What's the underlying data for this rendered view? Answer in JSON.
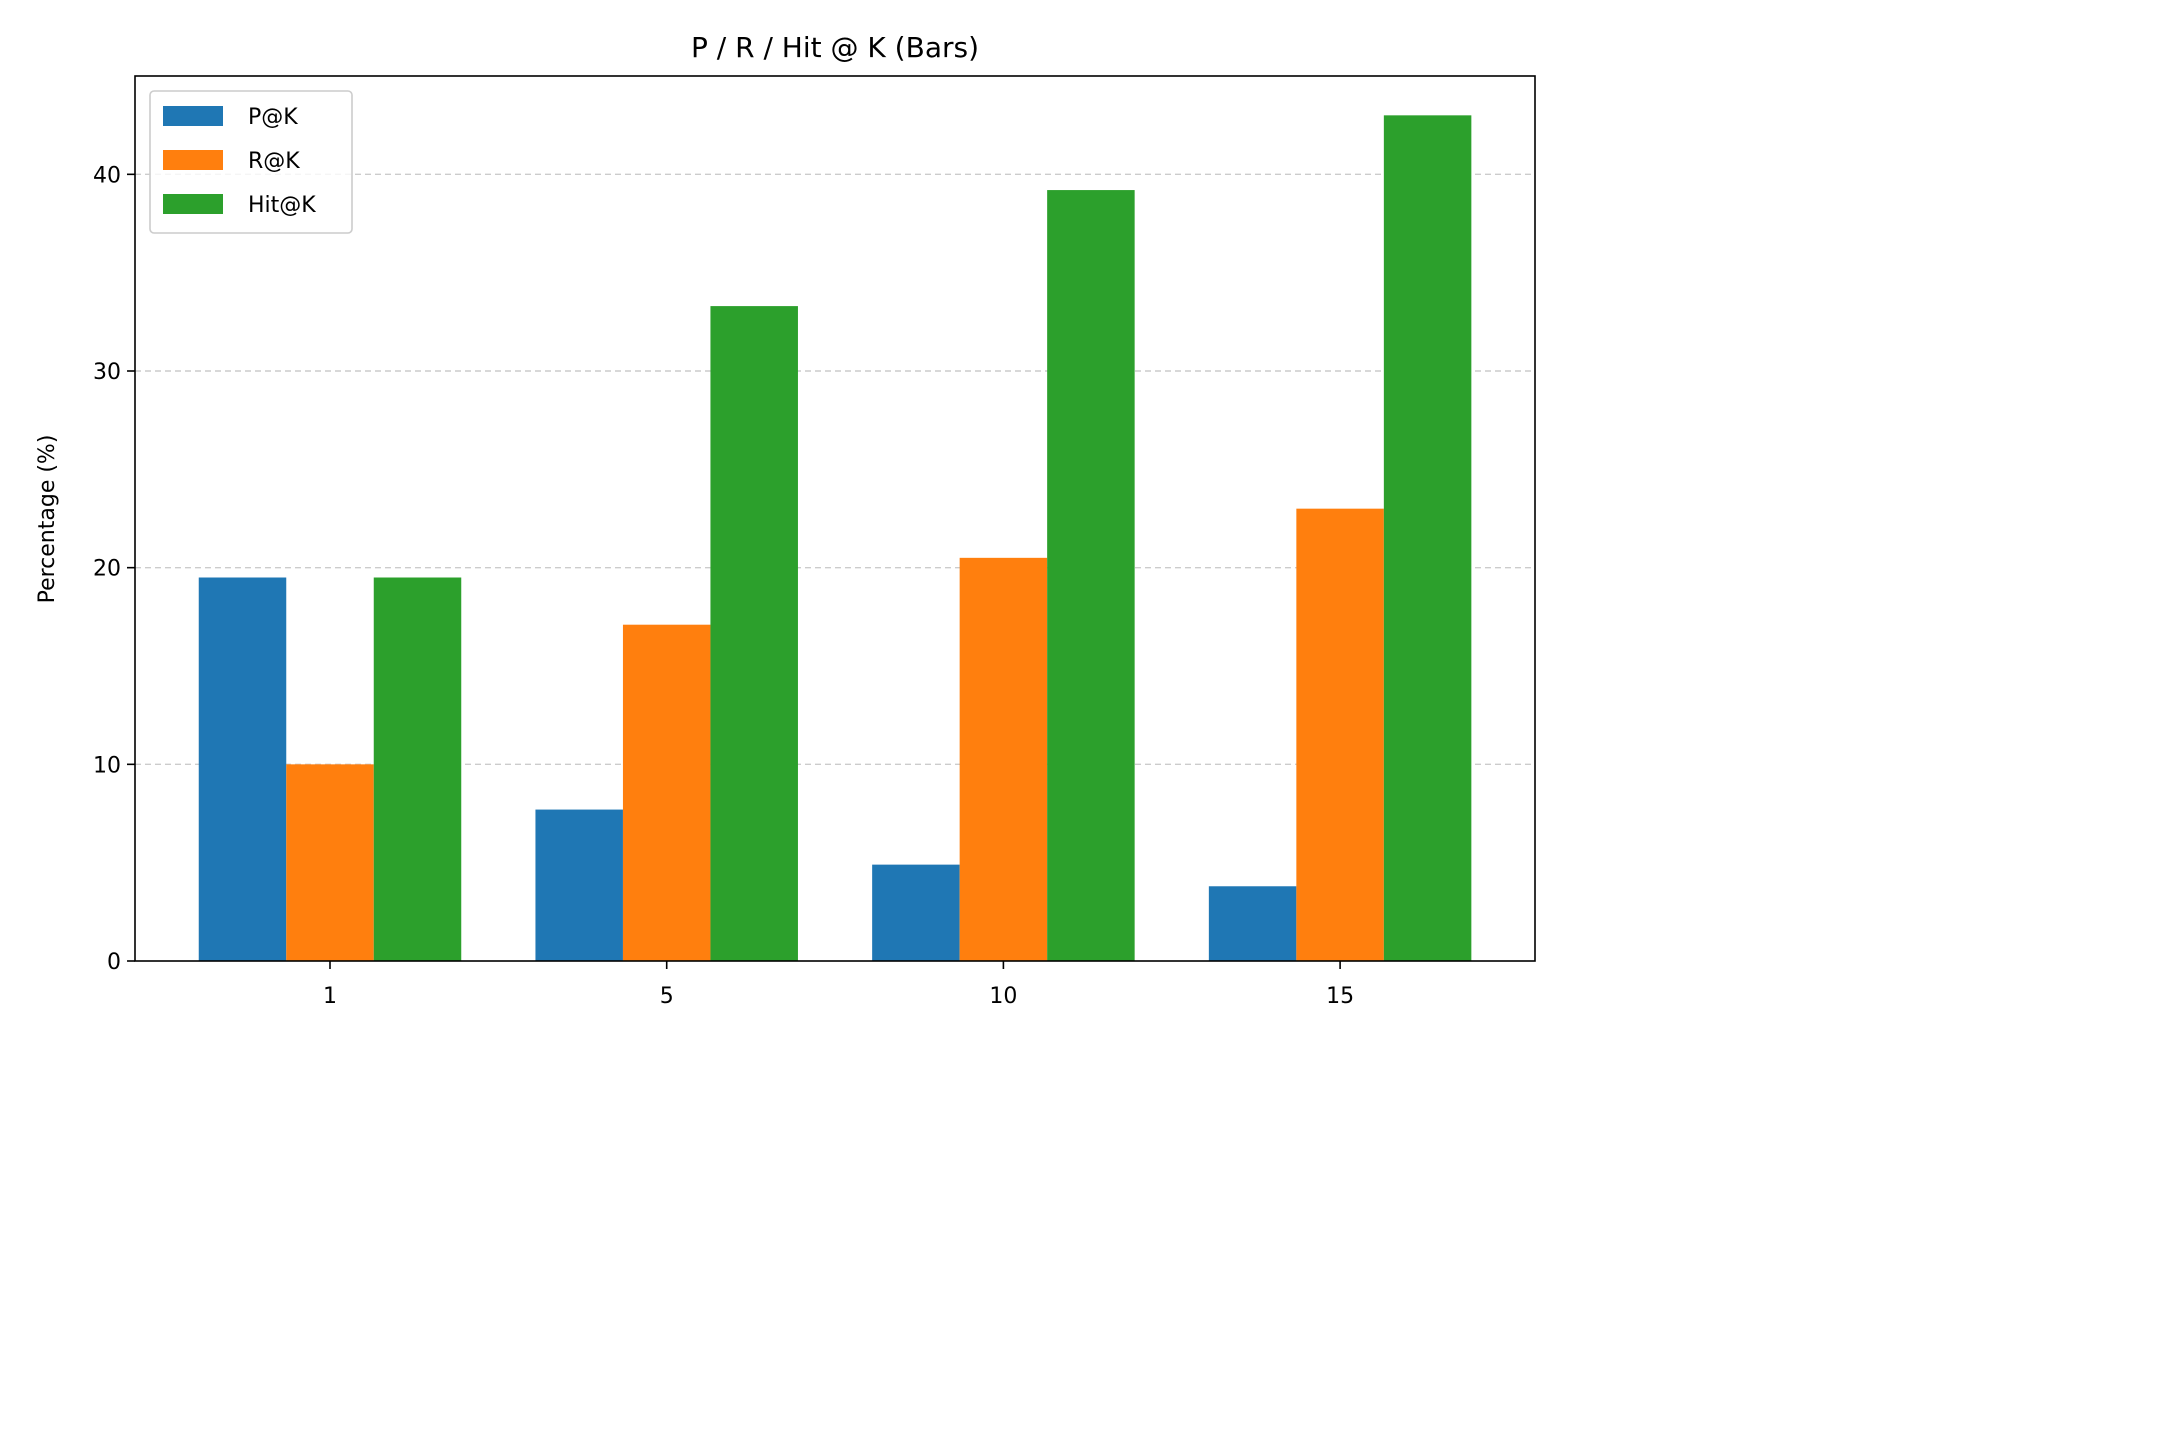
{
  "chart_data": {
    "type": "bar",
    "title": "P / R / Hit @ K (Bars)",
    "xlabel": "",
    "ylabel": "Percentage (%)",
    "categories": [
      "1",
      "5",
      "10",
      "15"
    ],
    "series": [
      {
        "name": "P@K",
        "color": "#1f77b4",
        "values": [
          19.5,
          7.7,
          4.9,
          3.8
        ]
      },
      {
        "name": "R@K",
        "color": "#ff7f0e",
        "values": [
          10.0,
          17.1,
          20.5,
          23.0
        ]
      },
      {
        "name": "Hit@K",
        "color": "#2ca02c",
        "values": [
          19.5,
          33.3,
          39.2,
          43.0
        ]
      }
    ],
    "ylim": [
      0,
      45
    ],
    "yticks": [
      "0",
      "10",
      "20",
      "30",
      "40"
    ],
    "grid": "y-dashed",
    "legend_position": "top-left"
  }
}
